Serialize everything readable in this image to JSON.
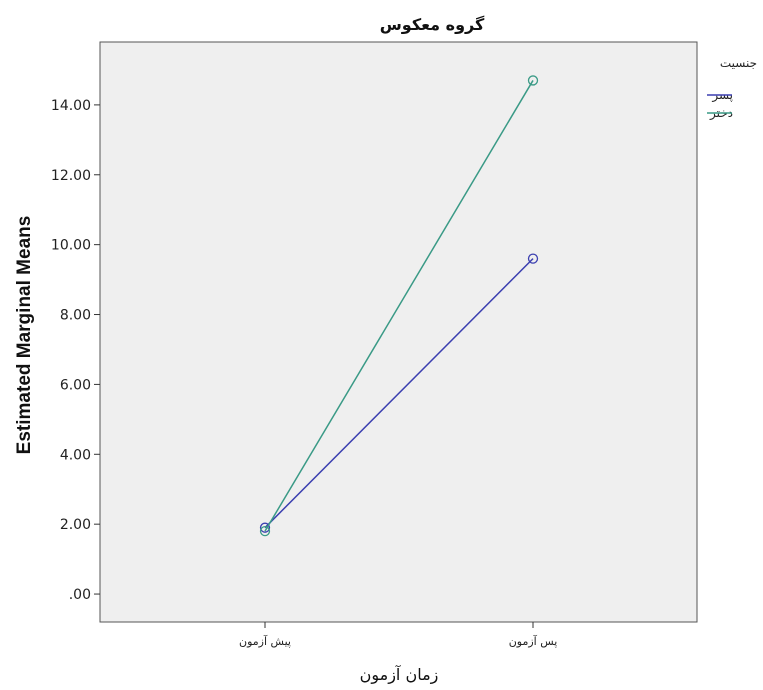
{
  "chart_data": {
    "type": "line",
    "title": "گروه معکوس",
    "xlabel": "زمان آزمون",
    "ylabel": "Estimated Marginal Means",
    "categories": [
      "پیش آزمون",
      "پس آزمون"
    ],
    "ylim": [
      -0.8,
      15.8
    ],
    "yticks": [
      0,
      2,
      4,
      6,
      8,
      10,
      12,
      14
    ],
    "ytick_labels": [
      ".00",
      "2.00",
      "4.00",
      "6.00",
      "8.00",
      "10.00",
      "12.00",
      "14.00"
    ],
    "grid": false,
    "legend": {
      "title": "جنسیت",
      "placement": "right"
    },
    "series": [
      {
        "name": "پسر",
        "values": [
          1.9,
          9.6
        ],
        "color": "#3b3fb0"
      },
      {
        "name": "دختر",
        "values": [
          1.8,
          14.7
        ],
        "color": "#3a9a86"
      }
    ],
    "plot_background": "#efefef"
  }
}
